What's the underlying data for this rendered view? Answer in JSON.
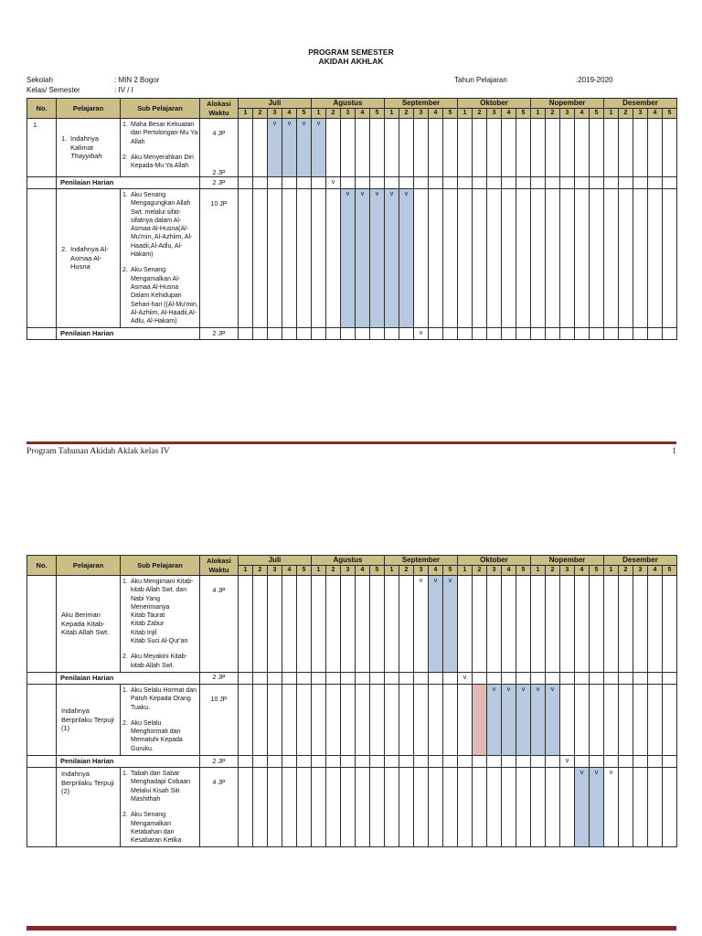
{
  "meta": {
    "title_line1": "PROGRAM SEMESTER",
    "title_line2": "AKIDAH AKHLAK",
    "info_left": [
      {
        "label": "Sekolah",
        "value": ": MIN 2 Bogor"
      },
      {
        "label": "Kelas/ Semester",
        "value": ": IV / I"
      }
    ],
    "info_right": {
      "label": "Tahun Pelajaran",
      "value": ":2019-2020"
    }
  },
  "table": {
    "col_headers": {
      "no": "No.",
      "pelajaran": "Pelajaran",
      "sub": "Sub Pelajaran",
      "alokasi": "Alokasi\nWaktu"
    },
    "months": [
      "Juli",
      "Agustus",
      "September",
      "Oktober",
      "Nopember",
      "Desember"
    ],
    "weeks_per_month": [
      "1",
      "2",
      "3",
      "4",
      "5"
    ],
    "penilaian_label": "Penilaian Harian",
    "mark_char": "v",
    "colors": {
      "header_bg": "#ccbe87",
      "highlight_blue": "#b6c9e0",
      "highlight_pink": "#e3b7b3",
      "footer_rule": "#802b24"
    }
  },
  "page1": {
    "rows": [
      {
        "type": "content",
        "no": "1.",
        "pelajaran": {
          "num": "1.",
          "text": "Indahnya Kalimat ",
          "italic": "Thayyibah",
          "valign": "middle"
        },
        "sub_items": [
          {
            "num": "1.",
            "text": "Maha Besar Kekuatan dan Pertolongan-Mu Ya Allah",
            "jp": "4 JP"
          },
          {
            "num": "2.",
            "text": "Aku Menyerahkan Diri Kepada-Mu Ya Allah",
            "jp": "2 JP"
          }
        ],
        "marks": [
          2,
          3,
          4,
          5
        ],
        "blue": [
          2,
          3,
          4,
          5
        ],
        "pink": []
      },
      {
        "type": "penilaian",
        "jp": "2 JP",
        "marks": [
          6
        ],
        "blue": [],
        "pink": []
      },
      {
        "type": "content",
        "no": "",
        "pelajaran": {
          "num": "2.",
          "text": "Indahnya Al-Asmaa Al-Husna",
          "italic": "",
          "valign": "middle"
        },
        "sub_items": [
          {
            "num": "1.",
            "text": "Aku Senang Mengagungkan Allah Swt. melalui sifat-sifatnya dalam Al-Asmaa Al-Husna(Al-Mu'min, Al-Azhiim, Al-Haadii,Al-Adlu, Al-Hakam)",
            "jp": "10 JP"
          },
          {
            "num": "2.",
            "text": "Aku Senang Mengamalkan Al-Asmaa Al-Husna Dalam Kehidupan Sehari-hari ((Al-Mu'min, Al-Azhiim, Al-Haadii,Al-Adlu, Al-Hakam)",
            "jp": ""
          }
        ],
        "marks": [
          7,
          8,
          9,
          10,
          11
        ],
        "blue": [
          7,
          8,
          9,
          10,
          11
        ],
        "pink": []
      },
      {
        "type": "penilaian",
        "jp": "2 JP",
        "marks": [
          12
        ],
        "blue": [],
        "pink": []
      }
    ],
    "footer_text": "Program Tahunan Akidah Aklak kelas IV",
    "footer_page": "1"
  },
  "page2": {
    "rows": [
      {
        "type": "content",
        "no": "",
        "pelajaran": {
          "num": "",
          "text": "Aku Beriman Kepada Kitab-Kitab Allah Swt.",
          "italic": "",
          "valign": "middle"
        },
        "sub_items": [
          {
            "num": "1.",
            "text": "Aku Mengimani Kitab-kitab Allah Swt. dan Nabi Yang Menerimanya\nKitab Taurat\nKitab Zabur\nKitab Injil\nKitab Suci Al-Qur'an",
            "jp": "4 JP"
          },
          {
            "num": "2.",
            "text": "Aku Meyakini Kitab-kitab Allah Swt.",
            "jp": ""
          }
        ],
        "marks": [
          12,
          13,
          14
        ],
        "blue": [
          13,
          14
        ],
        "pink": []
      },
      {
        "type": "penilaian",
        "jp": "2 JP",
        "marks": [
          15
        ],
        "blue": [],
        "pink": []
      },
      {
        "type": "content",
        "no": "",
        "pelajaran": {
          "num": "",
          "text": "Indahnya Berprilaku Terpuji (1)",
          "italic": "",
          "valign": "middle"
        },
        "sub_items": [
          {
            "num": "1.",
            "text": "Aku Selalu Hormat dan Patuh Kepada Orang Tuaku.",
            "jp": "10 JP"
          },
          {
            "num": "2.",
            "text": "Aku Selalu Menghormati dan Mematuhi Kepada Guruku.",
            "jp": ""
          }
        ],
        "marks": [
          17,
          18,
          19,
          20,
          21
        ],
        "blue": [
          17,
          18,
          19,
          20,
          21
        ],
        "pink": [
          16
        ]
      },
      {
        "type": "penilaian",
        "jp": "2 JP",
        "marks": [
          22
        ],
        "blue": [],
        "pink": []
      },
      {
        "type": "content",
        "no": "",
        "pelajaran": {
          "num": "",
          "text": "Indahnya Berprilaku Terpuji (2)",
          "italic": "",
          "valign": "top"
        },
        "sub_items": [
          {
            "num": "1.",
            "text": "Tabah dan Sabar Menghadapi Cobaan Melalui Kisah Siti Mashithah",
            "jp": "4 JP"
          },
          {
            "num": "2.",
            "text": "Aku Senang Mengamalkan Ketabahan dan Kesabaran Ketika",
            "jp": ""
          }
        ],
        "marks": [
          23,
          24,
          25
        ],
        "blue": [
          23,
          24
        ],
        "pink": []
      }
    ]
  }
}
